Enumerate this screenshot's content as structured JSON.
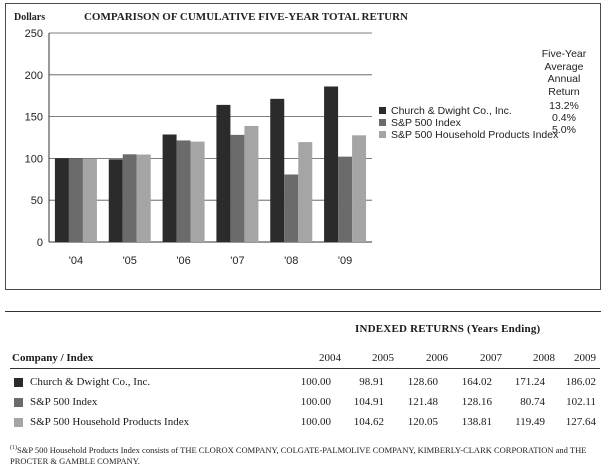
{
  "chart_data": {
    "type": "bar",
    "title": "COMPARISON OF CUMULATIVE FIVE-YEAR TOTAL RETURN",
    "ylabel": "Dollars",
    "ylim": [
      0,
      250
    ],
    "yticks": [
      0,
      50,
      100,
      150,
      200,
      250
    ],
    "categories": [
      "'04",
      "'05",
      "'06",
      "'07",
      "'08",
      "'09"
    ],
    "legend_position": "right",
    "legend_header": [
      "Five-Year",
      "Average",
      "Annual",
      "Return"
    ],
    "series": [
      {
        "name": "Church & Dwight Co., Inc.",
        "color": "#2b2b2b",
        "return": "13.2%",
        "values": [
          100.0,
          98.91,
          128.6,
          164.02,
          171.24,
          186.02
        ]
      },
      {
        "name": "S&P 500 Index",
        "color": "#6b6b6b",
        "return": "0.4%",
        "values": [
          100.0,
          104.91,
          121.48,
          128.16,
          80.74,
          102.11
        ]
      },
      {
        "name": "S&P 500 Household Products Index",
        "color": "#a5a5a5",
        "return": "5.0%",
        "values": [
          100.0,
          104.62,
          120.05,
          138.81,
          119.49,
          127.64
        ]
      }
    ]
  },
  "table": {
    "title": "INDEXED RETURNS (Years Ending)",
    "company_header": "Company / Index",
    "years": [
      "2004",
      "2005",
      "2006",
      "2007",
      "2008",
      "2009"
    ],
    "rows": [
      {
        "name": "Church & Dwight Co., Inc.",
        "color": "#2b2b2b",
        "values": [
          "100.00",
          "98.91",
          "128.60",
          "164.02",
          "171.24",
          "186.02"
        ]
      },
      {
        "name": "S&P 500 Index",
        "color": "#6b6b6b",
        "values": [
          "100.00",
          "104.91",
          "121.48",
          "128.16",
          "80.74",
          "102.11"
        ]
      },
      {
        "name": "S&P 500 Household Products Index",
        "color": "#a5a5a5",
        "values": [
          "100.00",
          "104.62",
          "120.05",
          "138.81",
          "119.49",
          "127.64"
        ]
      }
    ]
  },
  "footnote": {
    "marker": "(1)",
    "text": "S&P 500 Household Products Index consists of THE CLOROX COMPANY, COLGATE-PALMOLIVE COMPANY, KIMBERLY-CLARK CORPORATION and THE PROCTER & GAMBLE COMPANY."
  }
}
